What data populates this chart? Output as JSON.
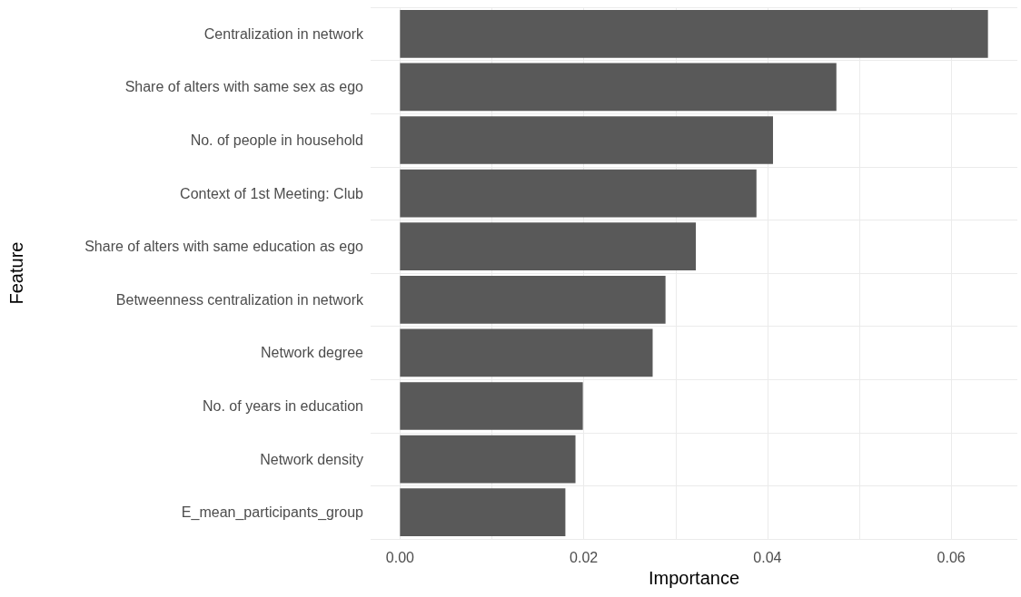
{
  "chart_data": {
    "type": "bar",
    "orientation": "horizontal",
    "xlabel": "Importance",
    "ylabel": "Feature",
    "categories": [
      "Centralization in network",
      "Share of alters with same sex as ego",
      "No. of people in household",
      "Context of 1st Meeting: Club",
      "Share of alters with same education as ego",
      "Betweenness centralization in network",
      "Network degree",
      "No. of years in education",
      "Network density",
      "E_mean_participants_group"
    ],
    "values": [
      0.064,
      0.0475,
      0.0406,
      0.0388,
      0.0322,
      0.0289,
      0.0275,
      0.0199,
      0.0191,
      0.018
    ],
    "color": "#595959",
    "xlim": [
      -0.0032,
      0.0672
    ],
    "xticks": [
      {
        "value": 0,
        "label": "0.00"
      },
      {
        "value": 0.01,
        "label": null
      },
      {
        "value": 0.02,
        "label": "0.02"
      },
      {
        "value": 0.03,
        "label": null
      },
      {
        "value": 0.04,
        "label": "0.04"
      },
      {
        "value": 0.05,
        "label": null
      },
      {
        "value": 0.06,
        "label": "0.06"
      }
    ],
    "grid": true
  }
}
